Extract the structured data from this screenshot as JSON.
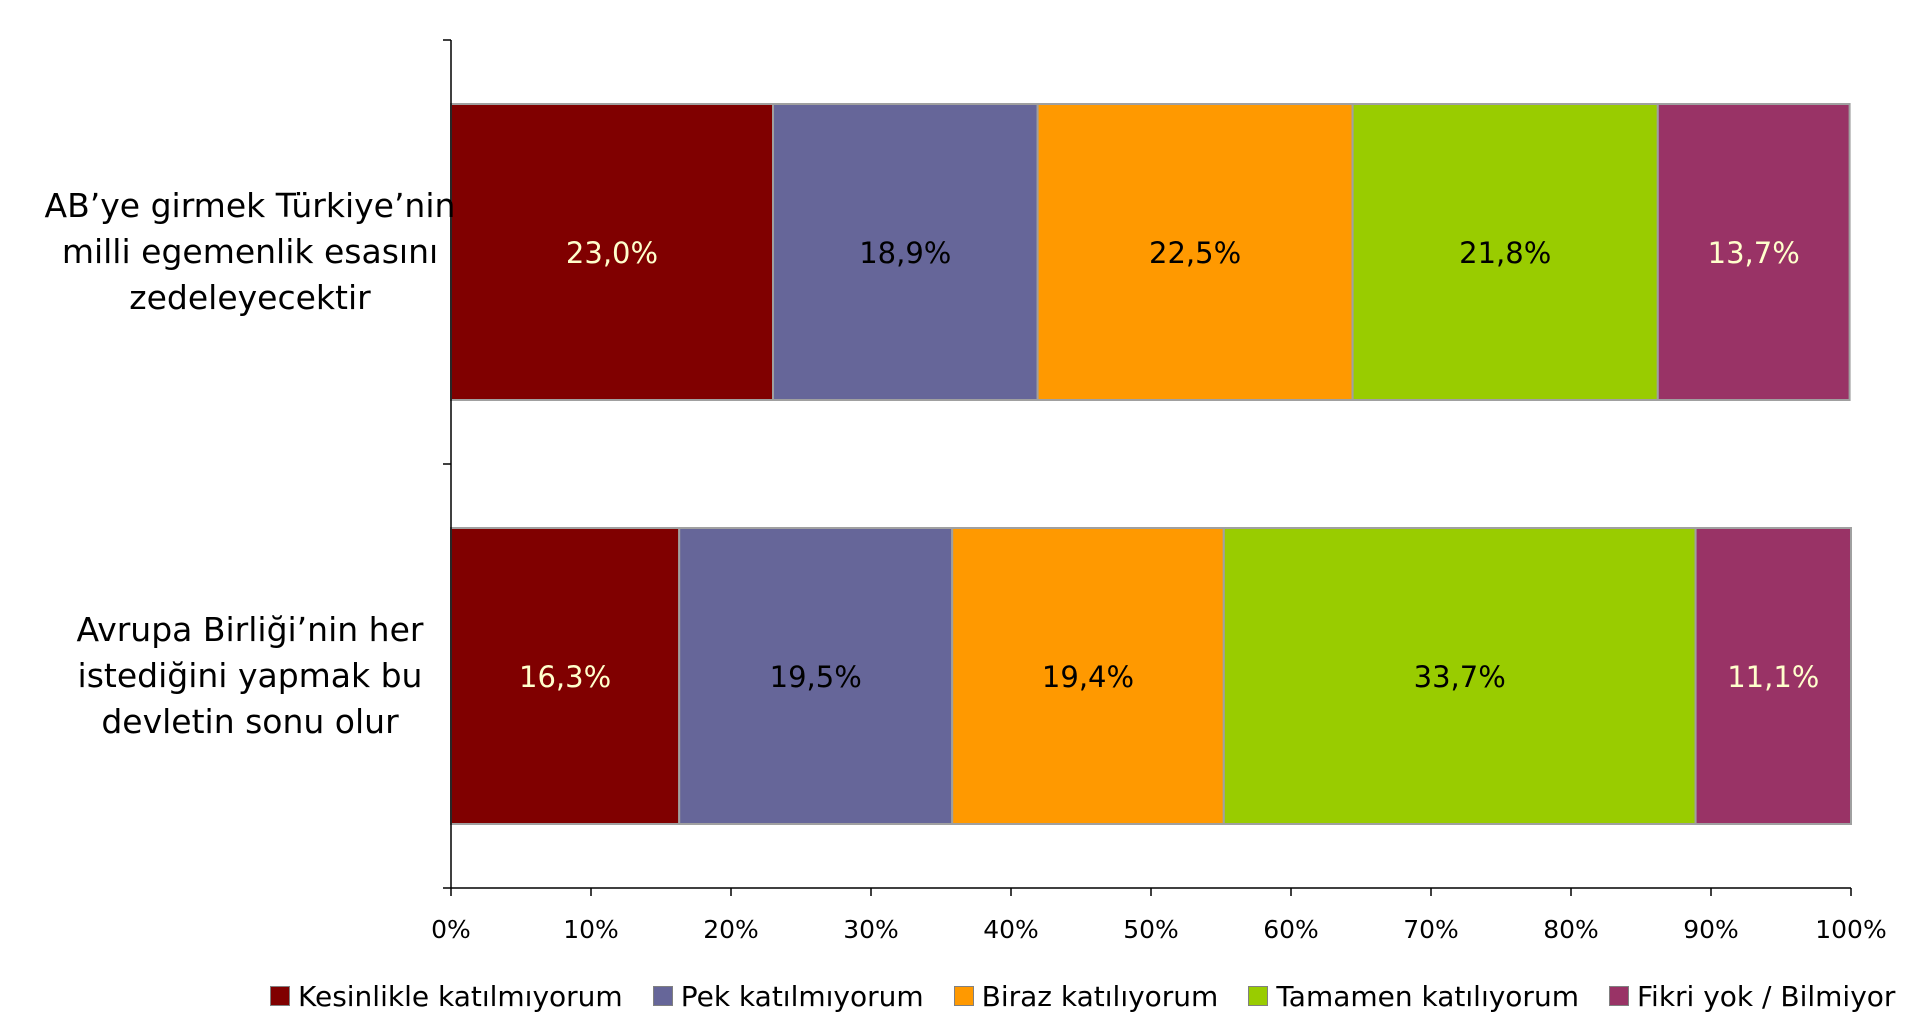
{
  "chart_data": {
    "type": "bar",
    "orientation": "horizontal",
    "stacked": "percent",
    "categories": [
      "AB’ye girmek Türkiye’nin\nmilli egemenlik esasını\nzedeleyecektir",
      "Avrupa Birliği’nin her\nistediğini yapmak bu\ndevletin sonu olur"
    ],
    "series": [
      {
        "name": "Kesinlikle katılmıyorum",
        "color": "#800000",
        "label_color": "#ffffcc",
        "values": [
          23.0,
          16.3
        ],
        "labels": [
          "23,0%",
          "16,3%"
        ]
      },
      {
        "name": "Pek katılmıyorum",
        "color": "#666699",
        "label_color": "#000000",
        "values": [
          18.9,
          19.5
        ],
        "labels": [
          "18,9%",
          "19,5%"
        ]
      },
      {
        "name": "Biraz katılıyorum",
        "color": "#ff9900",
        "label_color": "#000000",
        "values": [
          22.5,
          19.4
        ],
        "labels": [
          "22,5%",
          "19,4%"
        ]
      },
      {
        "name": "Tamamen katılıyorum",
        "color": "#99cc00",
        "label_color": "#000000",
        "values": [
          21.8,
          33.7
        ],
        "labels": [
          "21,8%",
          "33,7%"
        ]
      },
      {
        "name": "Fikri yok / Bilmiyor",
        "color": "#993366",
        "label_color": "#ffffcc",
        "values": [
          13.7,
          11.1
        ],
        "labels": [
          "13,7%",
          "11,1%"
        ]
      }
    ],
    "xlim": [
      0,
      100
    ],
    "xticks": [
      0,
      10,
      20,
      30,
      40,
      50,
      60,
      70,
      80,
      90,
      100
    ],
    "xtick_labels": [
      "0%",
      "10%",
      "20%",
      "30%",
      "40%",
      "50%",
      "60%",
      "70%",
      "80%",
      "90%",
      "100%"
    ],
    "grid": false,
    "legend_position": "bottom"
  }
}
